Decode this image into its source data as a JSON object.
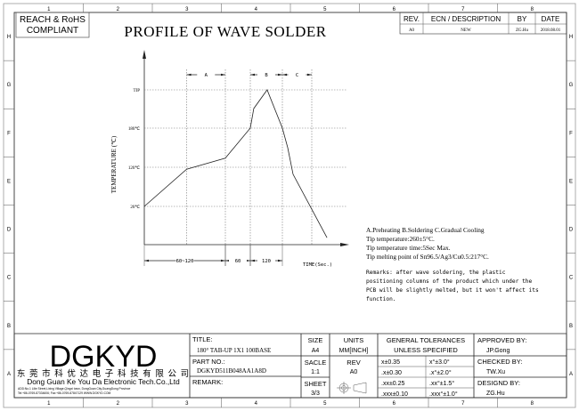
{
  "frame": {
    "columns": [
      "1",
      "2",
      "3",
      "4",
      "5",
      "6",
      "7",
      "8"
    ],
    "rows": [
      "H",
      "G",
      "F",
      "E",
      "D",
      "C",
      "B",
      "A"
    ]
  },
  "compliance": {
    "line1": "REACH & RoHS",
    "line2": "COMPLIANT"
  },
  "title": "PROFILE OF WAVE SOLDER",
  "revision_table": {
    "headers": [
      "REV.",
      "ECN / DESCRIPTION",
      "BY",
      "DATE"
    ],
    "rows": [
      [
        "A0",
        "NEW",
        "ZG.Hu",
        "2018.08.01"
      ]
    ]
  },
  "chart_data": {
    "type": "line",
    "ylabel": "TEMPERATURE (℃)",
    "xlabel": "TIME(Sec.)",
    "y_ticks": [
      {
        "label": "TIP",
        "value": 260
      },
      {
        "label": "180℃",
        "value": 180
      },
      {
        "label": "120℃",
        "value": 120
      },
      {
        "label": "20℃",
        "value": 20
      }
    ],
    "x_breaks": [
      0,
      90,
      150,
      270
    ],
    "zones": [
      {
        "label": "A",
        "from": 47,
        "to": 90
      },
      {
        "label": "B",
        "from": 150,
        "to": 270
      },
      {
        "label": "C",
        "from": 270,
        "to": 380
      }
    ],
    "durations": [
      {
        "label": "60~120",
        "from": 0,
        "to": 90
      },
      {
        "label": "60",
        "from": 90,
        "to": 150
      },
      {
        "label": "120",
        "from": 150,
        "to": 270
      }
    ],
    "series": [
      {
        "points": [
          [
            0,
            20
          ],
          [
            47,
            115
          ],
          [
            90,
            134
          ],
          [
            150,
            180
          ],
          [
            163,
            221
          ],
          [
            213,
            260
          ],
          [
            270,
            180
          ],
          [
            290,
            150
          ],
          [
            310,
            102
          ],
          [
            437,
            -60
          ]
        ]
      }
    ],
    "grid": true
  },
  "notes": {
    "lines": [
      "A.Preheating  B.Soldering  C.Gradual Cooling",
      "Tip temperature:260±5°C.",
      "Tip temperature time:5Sec Max.",
      "Tip melting point of Sn96.5/Ag3/Cu0.5:217°C."
    ],
    "remarks": [
      "Remarks: after wave soldering, the plastic",
      "positioning columns of the product  which under the",
      "PCB will be slightly melted, but it won't affect its",
      "function."
    ]
  },
  "title_block": {
    "logo": "DGKYD",
    "company_cn": "东 莞 市 科 优 达 电 子 科 技 有 限 公 司",
    "company_en": "Dong Guan Ke You Da Electronic Tech.Co.,Ltd",
    "address": "ADD:No.1 Lilie Street,Lixing Village,Qingxi town, DongGuan City,GuangDong Province",
    "contact": "Tel:+86-0769-87334606; Fax:+86-0769-87847129  WWW.DGKYD.COM",
    "title_label": "TITLE:",
    "title_value": "180° TAB-UP 1X1 100BASE",
    "part_label": "PART NO.:",
    "part_value": "DGKYD511B048AA1A8D",
    "remark_label": "REMARK:",
    "size_label": "SIZE",
    "size_value": "A4",
    "units_label": "UNITS",
    "units_value": "MM[INCH]",
    "scale_label": "SACLE",
    "scale_value": "1:1",
    "rev_label": "REV",
    "rev_value": "A0",
    "sheet_label": "SHEET",
    "sheet_value": "3/3",
    "tol_header1": "GENERAL TOLERANCES",
    "tol_header2": "UNLESS SPECIFIED",
    "tolerances": [
      [
        "x±0.35",
        "x°±3.0°"
      ],
      [
        ".x±0.30",
        ".x°±2.0°"
      ],
      [
        ".xx±0.25",
        ".xx°±1.5°"
      ],
      [
        ".xxx±0.10",
        ".xxx°±1.0°"
      ]
    ],
    "approved_label": "APPROVED BY:",
    "approved_value": "JP.Gong",
    "checked_label": "CHECKED BY:",
    "checked_value": "TW.Xu",
    "designed_label": "DESIGND BY:",
    "designed_value": "ZG.Hu"
  }
}
